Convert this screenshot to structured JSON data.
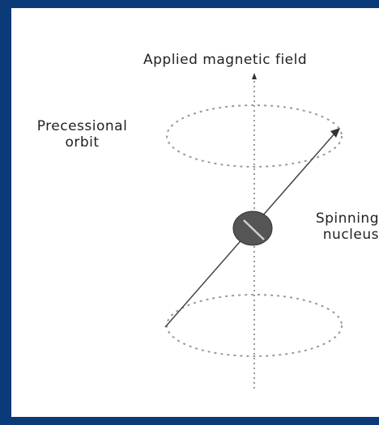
{
  "diagram": {
    "field_label": "Applied magnetic field",
    "orbit_label": [
      "Precessional",
      "orbit"
    ],
    "nucleus_label": [
      "Spinning",
      "nucleus"
    ]
  },
  "colors": {
    "frame": "#0b3a78",
    "background": "#ffffff",
    "nucleus_fill": "#555555",
    "lines": "#333333",
    "dotted": "#9a9a9a"
  }
}
